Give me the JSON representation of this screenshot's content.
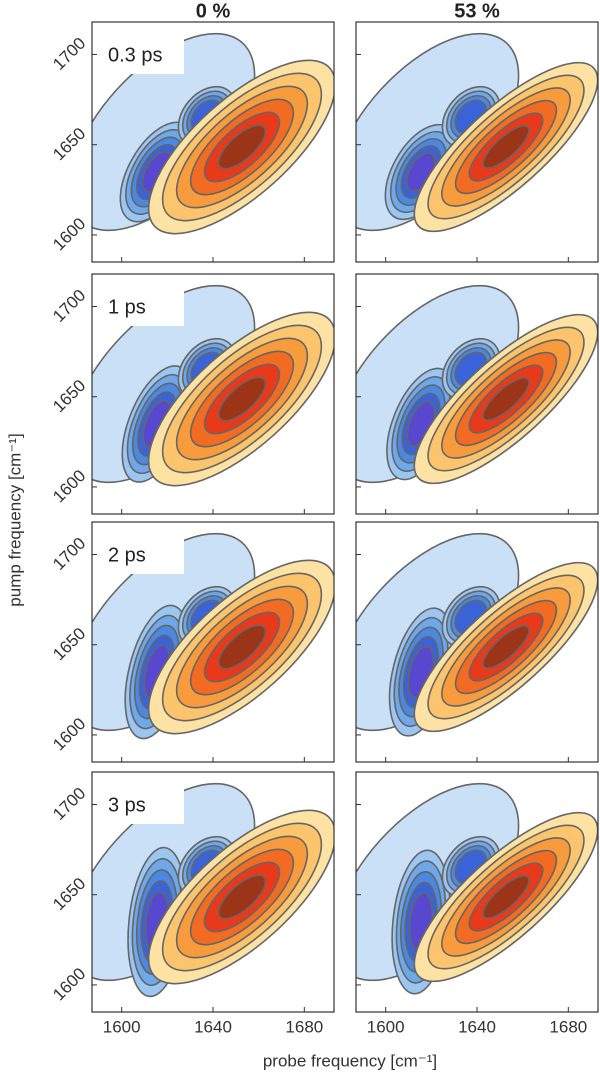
{
  "chart_data": {
    "type": "contour_grid",
    "columns": [
      "0 %",
      "53 %"
    ],
    "rows": [
      "0.3 ps",
      "1 ps",
      "2 ps",
      "3 ps"
    ],
    "xlabel": "probe frequency [cm⁻¹]",
    "ylabel": "pump frequency [cm⁻¹]",
    "xlim": [
      1587,
      1693
    ],
    "xticks": [
      1600,
      1640,
      1680
    ],
    "ylim": [
      1585,
      1718
    ],
    "yticks": [
      1600,
      1650,
      1700
    ]
  }
}
